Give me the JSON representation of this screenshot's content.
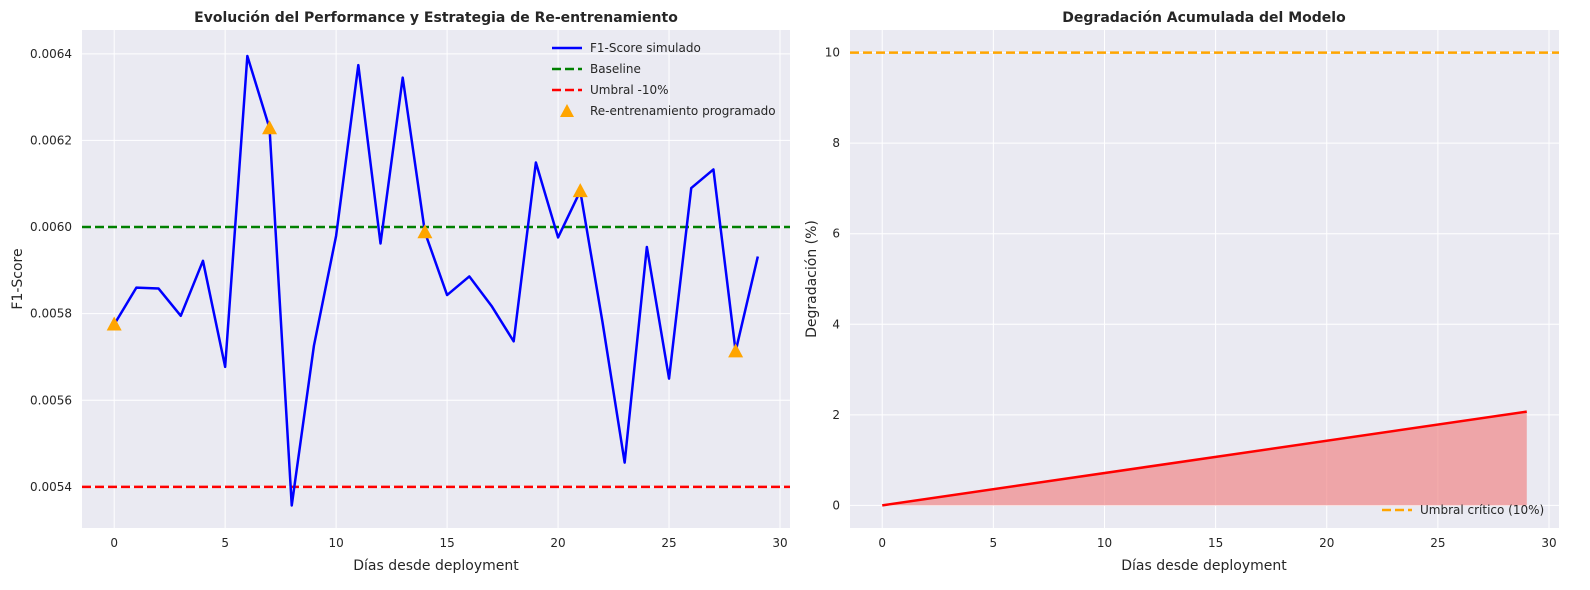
{
  "colors": {
    "axes_bg": "#eaeaf2",
    "grid": "#ffffff",
    "f1_line": "#0000ff",
    "baseline": "#008000",
    "threshold": "#ff0000",
    "markers": "#ffa500",
    "degradation_line": "#ff0000",
    "degradation_fill": "#f08080",
    "critical": "#ffa500"
  },
  "chart_data": [
    {
      "type": "line",
      "title": "Evolución del Performance y Estrategia de Re-entrenamiento",
      "xlabel": "Días desde deployment",
      "ylabel": "F1-Score",
      "xlim": [
        -1.45,
        30.45
      ],
      "ylim": [
        0.005305,
        0.006455
      ],
      "xticks": [
        0,
        5,
        10,
        15,
        20,
        25,
        30
      ],
      "xtick_labels": [
        "0",
        "5",
        "10",
        "15",
        "20",
        "25",
        "30"
      ],
      "yticks": [
        0.0054,
        0.0056,
        0.0058,
        0.006,
        0.0062,
        0.0064
      ],
      "ytick_labels": [
        "0.0054",
        "0.0056",
        "0.0058",
        "0.0060",
        "0.0062",
        "0.0064"
      ],
      "grid": true,
      "legend_position": "upper right",
      "legend": [
        {
          "label": "F1-Score simulado",
          "style": "solid",
          "color": "#0000ff"
        },
        {
          "label": "Baseline",
          "style": "dashed",
          "color": "#008000"
        },
        {
          "label": "Umbral -10%",
          "style": "dashed",
          "color": "#ff0000"
        },
        {
          "label": "Re-entrenamiento programado",
          "style": "triangle",
          "color": "#ffa500"
        }
      ],
      "series": [
        {
          "name": "F1-Score simulado",
          "x": [
            0,
            1,
            2,
            3,
            4,
            5,
            6,
            7,
            8,
            9,
            10,
            11,
            12,
            13,
            14,
            15,
            16,
            17,
            18,
            19,
            20,
            21,
            22,
            23,
            24,
            25,
            26,
            27,
            28,
            29
          ],
          "y": [
            0.005775,
            0.00586,
            0.005858,
            0.005795,
            0.005922,
            0.005677,
            0.006395,
            0.006228,
            0.005357,
            0.005726,
            0.00598,
            0.006374,
            0.005962,
            0.006345,
            0.005988,
            0.005843,
            0.005886,
            0.005818,
            0.005736,
            0.006149,
            0.005976,
            0.006083,
            0.005781,
            0.005456,
            0.005954,
            0.00565,
            0.00609,
            0.006133,
            0.005713,
            0.005932
          ]
        },
        {
          "name": "Re-entrenamiento programado",
          "x": [
            0,
            7,
            14,
            21,
            28
          ],
          "y": [
            0.005775,
            0.006228,
            0.005988,
            0.006083,
            0.005713
          ]
        }
      ],
      "reference_lines": [
        {
          "name": "Baseline",
          "y": 0.006
        },
        {
          "name": "Umbral -10%",
          "y": 0.0054
        }
      ]
    },
    {
      "type": "area",
      "title": "Degradación Acumulada del Modelo",
      "xlabel": "Días desde deployment",
      "ylabel": "Degradación (%)",
      "xlim": [
        -1.45,
        30.45
      ],
      "ylim": [
        -0.5,
        10.5
      ],
      "xticks": [
        0,
        5,
        10,
        15,
        20,
        25,
        30
      ],
      "xtick_labels": [
        "0",
        "5",
        "10",
        "15",
        "20",
        "25",
        "30"
      ],
      "yticks": [
        0,
        2,
        4,
        6,
        8,
        10
      ],
      "ytick_labels": [
        "0",
        "2",
        "4",
        "6",
        "8",
        "10"
      ],
      "grid": true,
      "legend_position": "lower right",
      "legend": [
        {
          "label": "Umbral crítico (10%)",
          "style": "dashed",
          "color": "#ffa500"
        }
      ],
      "series": [
        {
          "x": [
            0,
            29
          ],
          "y": [
            0,
            2.07
          ]
        }
      ],
      "reference_lines": [
        {
          "name": "Umbral crítico (10%)",
          "y": 10
        }
      ]
    }
  ]
}
